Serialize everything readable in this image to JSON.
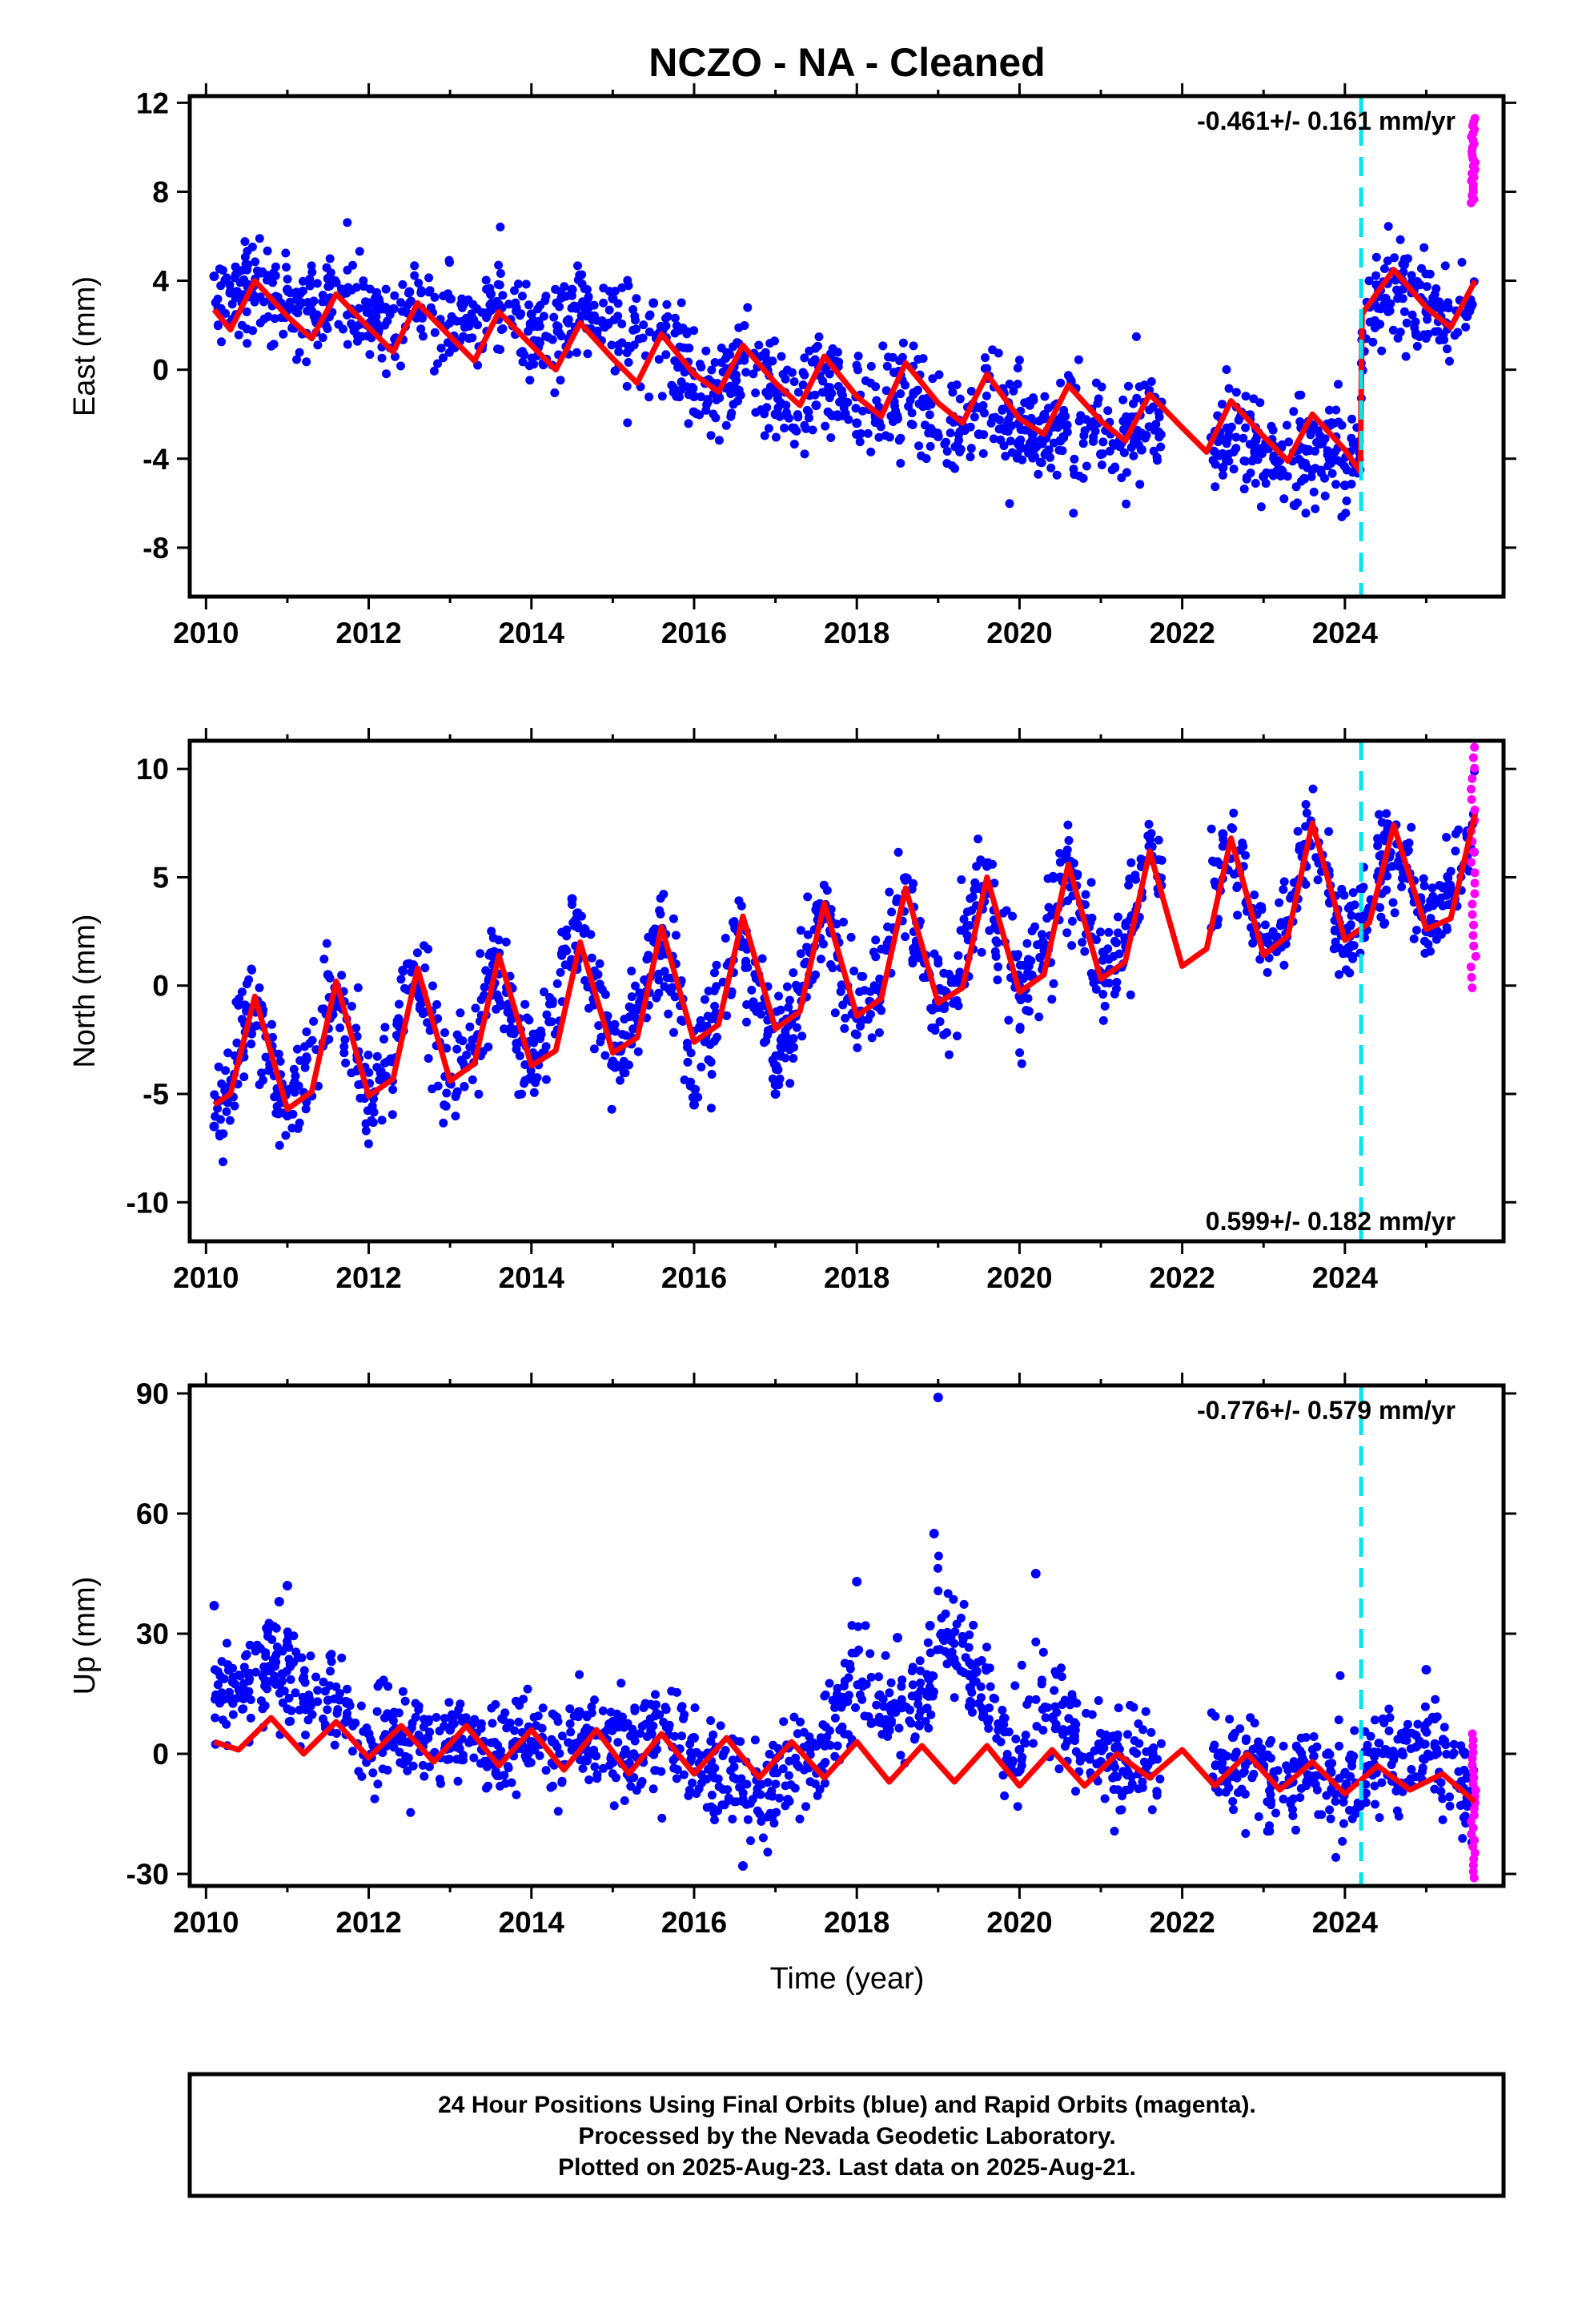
{
  "title": "NCZO  - NA - Cleaned",
  "xlabel": "Time (year)",
  "x_ticks": [
    "2010",
    "2012",
    "2014",
    "2016",
    "2018",
    "2020",
    "2022",
    "2024"
  ],
  "x_tick_values": [
    2010,
    2012,
    2014,
    2016,
    2018,
    2020,
    2022,
    2024
  ],
  "colors": {
    "final": "#0000ff",
    "rapid": "#ff00ff",
    "model": "#ff0000",
    "break": "#00e5ee"
  },
  "footer": {
    "line1": "24 Hour Positions Using Final Orbits (blue) and Rapid Orbits (magenta).",
    "line2": "Processed by the Nevada Geodetic Laboratory.",
    "line3": "Plotted on 2025-Aug-23. Last data on 2025-Aug-21."
  },
  "chart_data": [
    {
      "type": "scatter",
      "title": "NCZO  - NA - Cleaned",
      "ylabel": "East (mm)",
      "xlabel": "",
      "rate_label": "-0.461+/- 0.161 mm/yr",
      "xlim": [
        2009.8,
        2025.95
      ],
      "ylim": [
        -10.2,
        12.3
      ],
      "y_ticks": [
        "12",
        "8",
        "4",
        "0",
        "-4",
        "-8"
      ],
      "y_tick_values": [
        12,
        8,
        4,
        0,
        -4,
        -8
      ],
      "break_epoch": 2024.2,
      "series": [
        {
          "role": "final",
          "x": [
            2010.1,
            2010.5,
            2011.0,
            2011.5,
            2012.0,
            2012.5,
            2013.0,
            2013.5,
            2014.0,
            2014.5,
            2015.0,
            2015.5,
            2016.0,
            2016.5,
            2017.0,
            2017.5,
            2018.0,
            2018.5,
            2019.0,
            2019.5,
            2020.0,
            2020.5,
            2021.0,
            2021.5,
            2022.5,
            2023.0,
            2023.5,
            2024.0,
            2024.5,
            2025.0,
            2025.5
          ],
          "y": [
            4.2,
            4.5,
            3.6,
            4.1,
            3.0,
            3.5,
            3.2,
            3.4,
            2.5,
            3.6,
            3.2,
            3.0,
            -1.2,
            -1.0,
            -2.0,
            -1.6,
            -2.4,
            -2.2,
            -3.0,
            -2.9,
            -3.4,
            -3.2,
            -3.8,
            -3.6,
            -4.4,
            -4.8,
            -4.9,
            -5.2,
            3.2,
            2.6,
            2.4
          ]
        },
        {
          "role": "rapid",
          "x": [
            2025.56,
            2025.6,
            2025.63
          ],
          "y": [
            7.5,
            9.6,
            11.3
          ]
        },
        {
          "role": "model",
          "x": [
            2010.1,
            2010.3,
            2010.6,
            2011.0,
            2011.3,
            2011.6,
            2012.0,
            2012.3,
            2012.6,
            2013.0,
            2013.3,
            2013.6,
            2014.0,
            2014.3,
            2014.6,
            2015.0,
            2015.3,
            2015.6,
            2016.0,
            2016.3,
            2016.6,
            2017.0,
            2017.3,
            2017.6,
            2018.0,
            2018.3,
            2018.6,
            2019.0,
            2019.3,
            2019.6,
            2020.0,
            2020.3,
            2020.6,
            2021.0,
            2021.3,
            2021.6,
            2022.0,
            2022.3,
            2022.6,
            2023.0,
            2023.3,
            2023.6,
            2024.0,
            2024.19,
            2024.21,
            2024.6,
            2025.0,
            2025.3,
            2025.6
          ],
          "y": [
            2.7,
            1.8,
            4.0,
            2.4,
            1.4,
            3.4,
            1.9,
            0.8,
            3.0,
            1.5,
            0.4,
            2.6,
            1.1,
            0.0,
            2.1,
            0.5,
            -0.6,
            1.6,
            -0.2,
            -1.0,
            1.1,
            -0.6,
            -1.6,
            0.6,
            -1.2,
            -2.1,
            0.3,
            -1.5,
            -2.4,
            -0.2,
            -2.2,
            -2.9,
            -0.7,
            -2.3,
            -3.2,
            -1.1,
            -2.6,
            -3.7,
            -1.4,
            -3.0,
            -4.1,
            -2.0,
            -3.6,
            -4.6,
            2.5,
            4.5,
            2.8,
            1.9,
            4.0
          ]
        }
      ]
    },
    {
      "type": "scatter",
      "ylabel": "North (mm)",
      "xlabel": "",
      "rate_label": "0.599+/- 0.182 mm/yr",
      "xlim": [
        2009.8,
        2025.95
      ],
      "ylim": [
        -11.8,
        11.3
      ],
      "y_ticks": [
        "10",
        "5",
        "0",
        "-5",
        "-10"
      ],
      "y_tick_values": [
        10,
        5,
        0,
        -5,
        -10
      ],
      "break_epoch": 2024.2,
      "series": [
        {
          "role": "final",
          "x": [
            2010.1,
            2010.5,
            2011.0,
            2011.5,
            2012.0,
            2012.5,
            2013.0,
            2013.5,
            2014.0,
            2014.5,
            2015.0,
            2015.5,
            2016.0,
            2016.5,
            2017.0,
            2017.5,
            2018.0,
            2018.5,
            2019.0,
            2019.5,
            2020.0,
            2020.5,
            2021.0,
            2021.5,
            2022.5,
            2023.0,
            2023.5,
            2024.0,
            2024.5,
            2025.0,
            2025.5
          ],
          "y": [
            -6.5,
            -1.0,
            -6.0,
            0.5,
            -5.0,
            1.0,
            -4.5,
            1.5,
            -4.2,
            4.0,
            -3.5,
            2.5,
            -5.5,
            2.8,
            -5.0,
            3.5,
            -1.5,
            4.0,
            -1.0,
            4.5,
            -0.5,
            5.0,
            0.5,
            5.5,
            7.0,
            1.5,
            6.5,
            2.5,
            6.0,
            2.5,
            7.0
          ]
        },
        {
          "role": "rapid",
          "x": [
            2025.56,
            2025.6,
            2025.63
          ],
          "y": [
            -0.1,
            6.8,
            11.0
          ]
        },
        {
          "role": "model",
          "x": [
            2010.1,
            2010.3,
            2010.6,
            2011.0,
            2011.3,
            2011.6,
            2012.0,
            2012.3,
            2012.6,
            2013.0,
            2013.3,
            2013.6,
            2014.0,
            2014.3,
            2014.6,
            2015.0,
            2015.3,
            2015.6,
            2016.0,
            2016.3,
            2016.6,
            2017.0,
            2017.3,
            2017.6,
            2018.0,
            2018.3,
            2018.6,
            2019.0,
            2019.3,
            2019.6,
            2020.0,
            2020.3,
            2020.6,
            2021.0,
            2021.3,
            2021.6,
            2022.0,
            2022.3,
            2022.6,
            2023.0,
            2023.3,
            2023.6,
            2024.0,
            2024.3,
            2024.6,
            2025.0,
            2025.3,
            2025.6
          ],
          "y": [
            -5.5,
            -5.0,
            -0.5,
            -5.7,
            -4.9,
            0.2,
            -5.1,
            -4.3,
            0.8,
            -4.4,
            -3.6,
            1.4,
            -3.7,
            -3.0,
            2.0,
            -3.1,
            -2.4,
            2.7,
            -2.6,
            -1.8,
            3.2,
            -2.0,
            -1.2,
            3.8,
            -1.4,
            -0.6,
            4.5,
            -0.8,
            -0.1,
            5.0,
            -0.3,
            0.5,
            5.6,
            0.3,
            1.1,
            6.2,
            0.9,
            1.7,
            6.8,
            1.4,
            2.3,
            7.5,
            2.1,
            2.9,
            7.4,
            2.6,
            3.1,
            7.9
          ]
        }
      ]
    },
    {
      "type": "scatter",
      "ylabel": "Up (mm)",
      "xlabel": "Time (year)",
      "rate_label": "-0.776+/- 0.579 mm/yr",
      "xlim": [
        2009.8,
        2025.95
      ],
      "ylim": [
        -33,
        92
      ],
      "y_ticks": [
        "90",
        "60",
        "30",
        "0",
        "-30"
      ],
      "y_tick_values": [
        90,
        60,
        30,
        0,
        -30
      ],
      "break_epoch": 2024.2,
      "series": [
        {
          "role": "final",
          "x": [
            2010.1,
            2010.9,
            2011.0,
            2012.0,
            2013.0,
            2014.0,
            2015.0,
            2016.0,
            2016.6,
            2017.5,
            2018.0,
            2018.5,
            2018.9,
            2018.95,
            2019.0,
            2020.0,
            2020.2,
            2021.0,
            2022.5,
            2023.0,
            2024.0,
            2024.5,
            2025.0,
            2025.5
          ],
          "y": [
            37,
            38,
            42,
            5,
            6,
            3,
            8,
            4,
            -28,
            2,
            43,
            29,
            32,
            55,
            89,
            1,
            45,
            -2,
            0,
            -3,
            -5,
            1,
            21,
            -6
          ]
        },
        {
          "role": "rapid",
          "x": [
            2025.56,
            2025.6,
            2025.63
          ],
          "y": [
            -31,
            -10,
            5
          ]
        },
        {
          "role": "model",
          "x": [
            2010.1,
            2010.4,
            2010.8,
            2011.2,
            2011.6,
            2012.0,
            2012.4,
            2012.8,
            2013.2,
            2013.6,
            2014.0,
            2014.4,
            2014.8,
            2015.2,
            2015.6,
            2016.0,
            2016.4,
            2016.8,
            2017.2,
            2017.6,
            2018.0,
            2018.4,
            2018.8,
            2019.2,
            2019.6,
            2020.0,
            2020.4,
            2020.8,
            2021.2,
            2021.6,
            2022.0,
            2022.4,
            2022.8,
            2023.2,
            2023.6,
            2024.0,
            2024.4,
            2024.8,
            2025.2,
            2025.6
          ],
          "y": [
            3,
            1,
            9,
            0,
            8,
            -1,
            7,
            -2,
            7,
            -3,
            6,
            -4,
            6,
            -5,
            5,
            -5,
            4,
            -6,
            3,
            -6,
            3,
            -7,
            2,
            -7,
            2,
            -8,
            1,
            -8,
            0,
            -6,
            1,
            -8,
            0,
            -9,
            -2,
            -10,
            -3,
            -9,
            -5,
            -12
          ]
        }
      ]
    }
  ]
}
